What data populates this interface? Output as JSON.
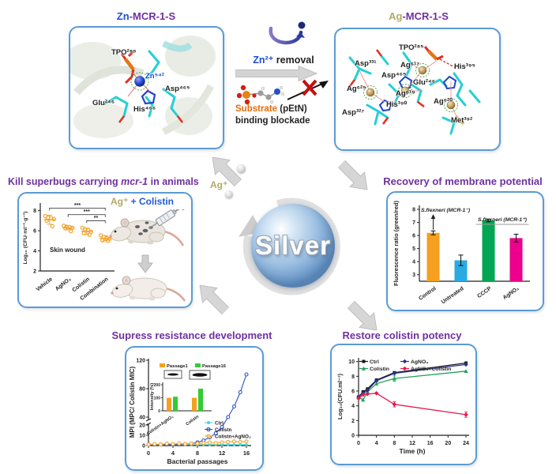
{
  "titles": {
    "zn_metal": "Zn",
    "zn_rest": "-MCR-1-S",
    "ag_metal": "Ag",
    "ag_rest": "-MCR-1-S",
    "kill_pre": "Kill superbugs carrying ",
    "kill_italic": "mcr-1",
    "kill_post": " in animals",
    "recovery": "Recovery of membrane potential",
    "supress": "Supress resistance development",
    "restore": "Restore colistin potency"
  },
  "transition": {
    "removal_metal": "Zn²⁺",
    "removal_rest": " removal",
    "substrate_word": "Substrate",
    "substrate_rest": " (pEtN)",
    "blockade": "binding blockade"
  },
  "center": {
    "sphere_label": "Silver",
    "ion_label": "Ag⁺"
  },
  "zn_panel": {
    "residues": [
      "TPO²⁸⁵",
      "Zn⁵⁴²",
      "Asp⁴⁶⁵",
      "Glu²⁴⁶",
      "His⁴⁶⁶"
    ]
  },
  "ag_panel": {
    "residues": [
      "TPO²⁸⁵",
      "Asp³³¹",
      "Ag⁶¹⁷",
      "His³⁹⁵",
      "Asp⁴⁶⁵",
      "Glu²⁴⁶",
      "Ag⁶²⁵",
      "Ag⁶¹⁹",
      "His³⁹⁰",
      "Ag⁶²⁰",
      "Asp³²⁷",
      "Met³⁹²"
    ]
  },
  "kill_panel": {
    "subtitle_metal": "Ag⁺",
    "subtitle_rest": " + Colistin"
  },
  "colors": {
    "panel_border": "#5B9BD5",
    "title_purple": "#7030A0",
    "zn_blue": "#1E4ED8",
    "ag_tan": "#B3A964",
    "substrate_orange": "#E36C0A",
    "arrow_gray": "#D6D6D6"
  },
  "chart_data": [
    {
      "id": "skin_wound_scatter",
      "type": "scatter",
      "ylabel": "Log₁₀ (CFU·ml⁻¹·g⁻¹)",
      "yticks": [
        2,
        4,
        6,
        8
      ],
      "ylim": [
        2,
        8.6
      ],
      "categories": [
        "Vehicle",
        "AgNO₃",
        "Colistin",
        "Combination"
      ],
      "points": [
        [
          7.45,
          7.3,
          7.25,
          7.15,
          7.0,
          6.45
        ],
        [
          6.5,
          6.4,
          6.35,
          6.3,
          6.25,
          5.95
        ],
        [
          6.3,
          6.15,
          6.05,
          5.9,
          5.75,
          5.6
        ],
        [
          5.55,
          5.35,
          5.25,
          5.2,
          5.05,
          5.0
        ]
      ],
      "means": [
        7.1,
        6.3,
        5.95,
        5.25
      ],
      "errs": [
        0.45,
        0.2,
        0.3,
        0.25
      ],
      "annotation": "Skin wound",
      "significance": [
        {
          "from": 0,
          "to": 3,
          "label": "***",
          "y": 8.25
        },
        {
          "from": 1,
          "to": 3,
          "label": "***",
          "y": 7.6
        },
        {
          "from": 2,
          "to": 3,
          "label": "**",
          "y": 7.0
        }
      ],
      "point_color": "#F5A42A"
    },
    {
      "id": "membrane_potential",
      "type": "bar",
      "ylabel": "Fluorescence ratio (green/red)",
      "yticks": [
        3,
        4,
        5,
        6,
        7,
        8
      ],
      "ylim": [
        2.5,
        8.3
      ],
      "categories": [
        "Control",
        "Untreated",
        "CCCP",
        "AgNO₃"
      ],
      "values": [
        6.2,
        4.1,
        7.15,
        5.8
      ],
      "errors": [
        0.15,
        0.4,
        0.1,
        0.3
      ],
      "bar_colors": [
        "#F5A020",
        "#29ABE2",
        "#00A651",
        "#EC008C"
      ],
      "annotations": [
        "S.flexneri (MCR-1⁻)",
        "S.flexneri (MCR-1⁺)"
      ]
    },
    {
      "id": "resistance_development",
      "type": "line",
      "ylabel": "MPI (MPC/ Colistin MIC)",
      "xlabel": "Bacterial passages",
      "xticks": [
        0,
        4,
        8,
        12,
        16
      ],
      "yticks_lower": [
        0,
        10,
        20
      ],
      "yticks_upper": [
        40,
        80,
        120
      ],
      "x": [
        0,
        1,
        2,
        3,
        4,
        5,
        6,
        7,
        8,
        9,
        10,
        11,
        12,
        13,
        14,
        15,
        16
      ],
      "series": [
        {
          "name": "Ctrl",
          "color": "#3FD8E8",
          "values": [
            0.8,
            0.8,
            0.8,
            0.8,
            0.8,
            0.8,
            0.8,
            0.8,
            0.8,
            0.8,
            0.8,
            0.8,
            0.8,
            0.8,
            0.8,
            0.8,
            0.8
          ]
        },
        {
          "name": "Colistn",
          "color": "#2B50C8",
          "values": [
            1,
            1,
            1,
            1,
            1,
            1.2,
            1.5,
            2,
            3,
            5,
            8,
            12,
            18,
            40,
            55,
            75,
            100
          ]
        },
        {
          "name": "Colistn+AgNO₃",
          "color": "#F5A42A",
          "values": [
            1,
            1.5,
            1,
            2,
            1.5,
            2,
            1.5,
            2,
            2,
            2.5,
            3,
            2.5,
            3,
            3.5,
            4,
            3.5,
            4
          ]
        }
      ],
      "inset": {
        "ylabel": "Intensity (%)",
        "yticks": [
          0,
          100,
          200
        ],
        "categories": [
          "Colistn+AgNO₃",
          "Colistn"
        ],
        "series": [
          {
            "name": "Passage1",
            "color": "#F5A020",
            "values": [
              100,
              100
            ]
          },
          {
            "name": "Passage16",
            "color": "#33CC33",
            "values": [
              108,
              170
            ]
          }
        ]
      }
    },
    {
      "id": "colistin_potency",
      "type": "line",
      "ylabel": "Log₁₀(CFU.ml⁻¹)",
      "xlabel": "Time (h)",
      "xticks": [
        0,
        4,
        8,
        12,
        16,
        20,
        24
      ],
      "yticks": [
        0,
        2,
        4,
        6,
        8,
        10
      ],
      "x": [
        0,
        1,
        2,
        4,
        8,
        24
      ],
      "series": [
        {
          "name": "Ctrl",
          "color": "#1A1A1A",
          "marker": "square",
          "values": [
            5.2,
            5.9,
            6.3,
            7.5,
            8.5,
            9.8
          ]
        },
        {
          "name": "Colistin",
          "color": "#22A05A",
          "marker": "triangle",
          "values": [
            5.2,
            4.8,
            5.9,
            7.0,
            7.7,
            8.7
          ]
        },
        {
          "name": "AgNO₃",
          "color": "#28338C",
          "marker": "diamond",
          "values": [
            5.2,
            5.7,
            6.1,
            7.4,
            8.4,
            9.6
          ]
        },
        {
          "name": "AgNO₃+Colistin",
          "color": "#E9184F",
          "marker": "diamond",
          "values": [
            5.0,
            5.5,
            5.6,
            5.7,
            4.2,
            2.8
          ]
        }
      ]
    }
  ]
}
